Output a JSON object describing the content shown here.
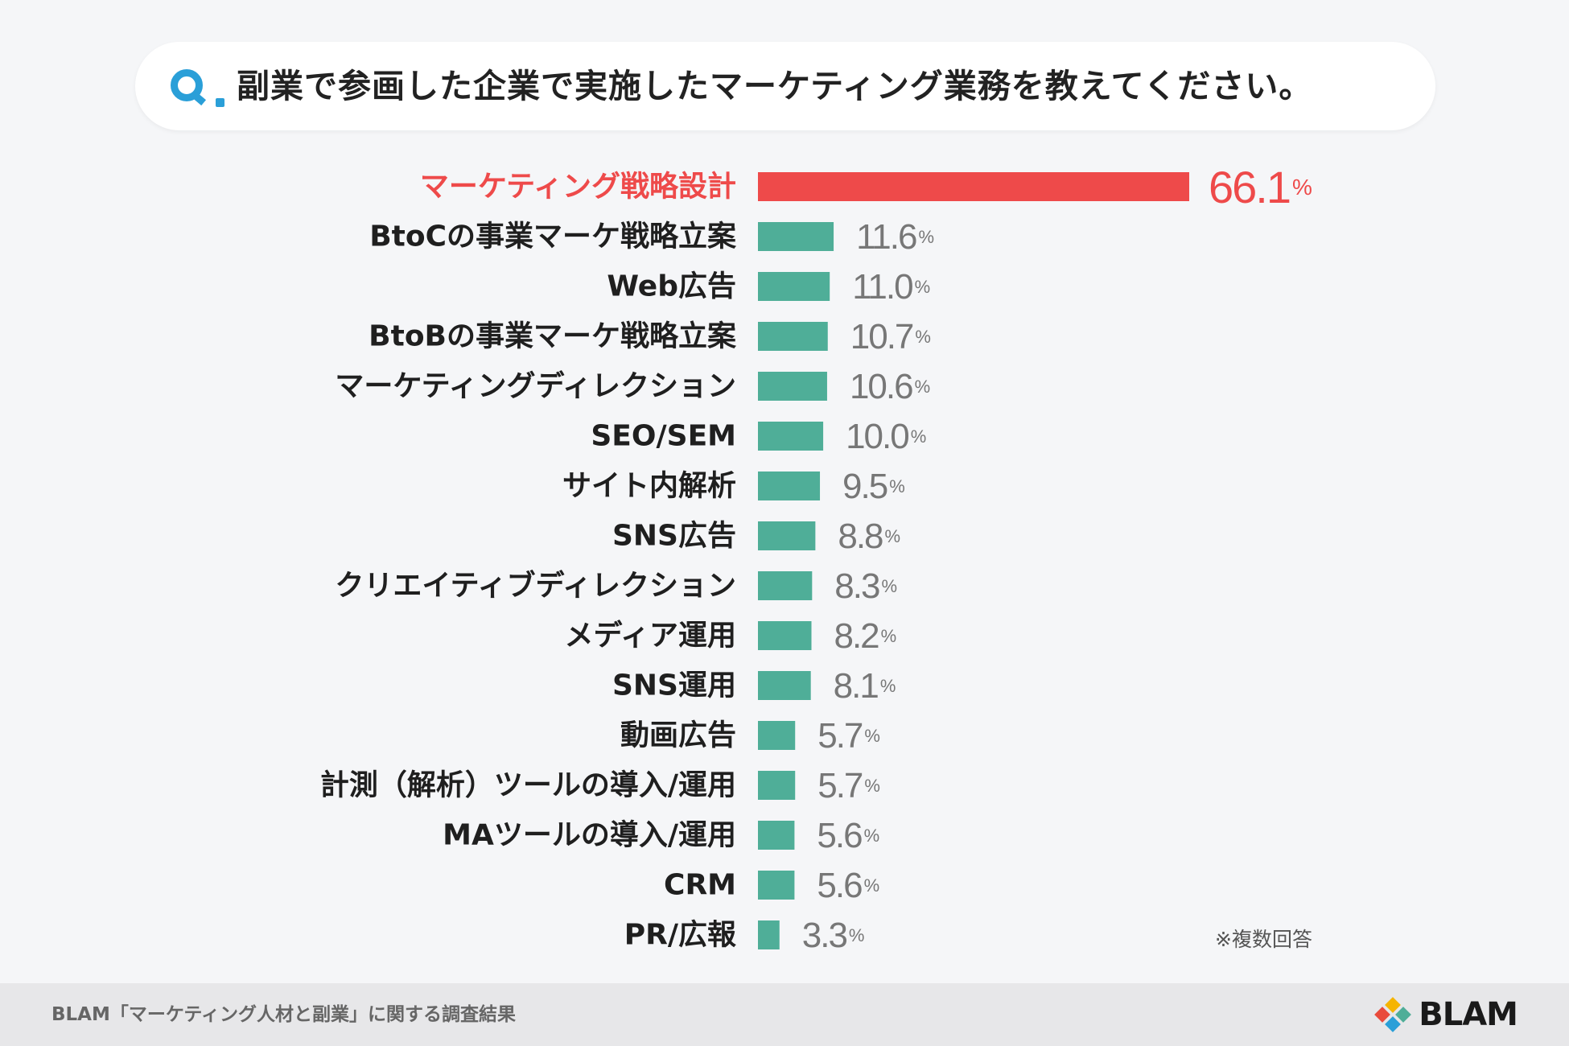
{
  "question": {
    "prefix": "Q.",
    "text": "副業で参画した企業で実施したマーケティング業務を教えてください。"
  },
  "chart_data": {
    "type": "bar",
    "orientation": "horizontal",
    "title": "副業で参画した企業で実施したマーケティング業務を教えてください。",
    "unit": "%",
    "categories": [
      "マーケティング戦略設計",
      "BtoCの事業マーケ戦略立案",
      "Web広告",
      "BtoBの事業マーケ戦略立案",
      "マーケティングディレクション",
      "SEO/SEM",
      "サイト内解析",
      "SNS広告",
      "クリエイティブディレクション",
      "メディア運用",
      "SNS運用",
      "動画広告",
      "計測（解析）ツールの導入/運用",
      "MAツールの導入/運用",
      "CRM",
      "PR/広報"
    ],
    "values": [
      66.1,
      11.6,
      11.0,
      10.7,
      10.6,
      10.0,
      9.5,
      8.8,
      8.3,
      8.2,
      8.1,
      5.7,
      5.7,
      5.6,
      5.6,
      3.3
    ],
    "labels": [
      "66.1",
      "11.6",
      "11.0",
      "10.7",
      "10.6",
      "10.0",
      "9.5",
      "8.8",
      "8.3",
      "8.2",
      "8.1",
      "5.7",
      "5.7",
      "5.6",
      "5.6",
      "3.3"
    ],
    "highlight_index": 0,
    "colors": {
      "highlight": "#ee4a4a",
      "bar": "#4fae98",
      "label": "#1f1f1f",
      "value": "#777777"
    },
    "xlim": [
      0,
      66.1
    ]
  },
  "note": "※複数回答",
  "footer": {
    "source": "BLAM「マーケティング人材と副業」に関する調査結果",
    "logo": "BLAM"
  }
}
